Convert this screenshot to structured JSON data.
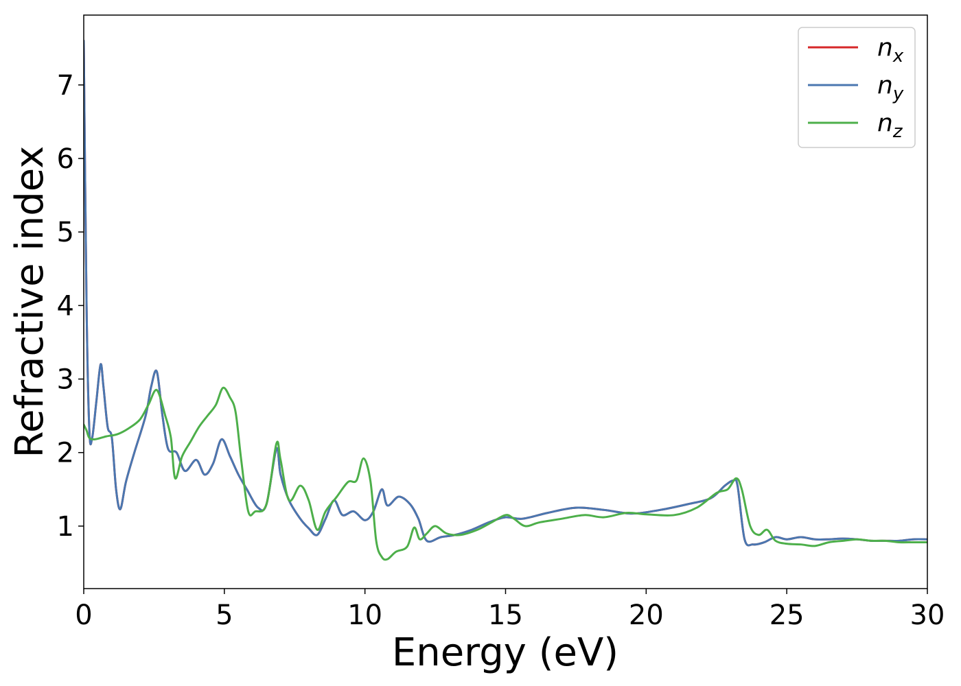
{
  "chart_data": {
    "type": "line",
    "title": "",
    "xlabel": "Energy (eV)",
    "ylabel": "Refractive index",
    "xlim": [
      0,
      30
    ],
    "ylim": [
      0.15,
      7.95
    ],
    "xticks": [
      0,
      5,
      10,
      15,
      20,
      25,
      30
    ],
    "yticks": [
      1,
      2,
      3,
      4,
      5,
      6,
      7
    ],
    "grid": false,
    "legend_position": "top-right",
    "series": [
      {
        "name": "n",
        "subscript": "x",
        "color": "#d62728",
        "x": [
          0,
          0.1,
          0.2,
          0.3,
          0.45,
          0.6,
          0.7,
          0.85,
          1.0,
          1.15,
          1.3,
          1.5,
          1.8,
          2.2,
          2.4,
          2.6,
          2.8,
          3.0,
          3.3,
          3.6,
          4.0,
          4.3,
          4.6,
          4.9,
          5.2,
          5.5,
          5.8,
          6.2,
          6.5,
          6.85,
          7.0,
          7.3,
          7.7,
          8.0,
          8.3,
          8.6,
          8.9,
          9.2,
          9.6,
          10.0,
          10.3,
          10.6,
          10.8,
          11.2,
          11.6,
          11.9,
          12.2,
          12.7,
          13.2,
          13.8,
          14.4,
          15.0,
          15.6,
          16.5,
          17.5,
          18.5,
          19.5,
          20.5,
          21.5,
          22.3,
          22.8,
          23.1,
          23.25,
          23.5,
          23.8,
          24.2,
          24.6,
          25.0,
          25.5,
          26.0,
          26.5,
          27.0,
          27.5,
          28.0,
          28.5,
          29.0,
          29.5,
          30.0
        ],
        "y": [
          7.6,
          4.0,
          2.3,
          2.2,
          2.7,
          3.2,
          2.9,
          2.35,
          2.2,
          1.5,
          1.23,
          1.6,
          2.0,
          2.5,
          2.9,
          3.1,
          2.5,
          2.05,
          2.0,
          1.75,
          1.9,
          1.7,
          1.85,
          2.18,
          1.95,
          1.7,
          1.5,
          1.25,
          1.3,
          2.05,
          1.7,
          1.35,
          1.1,
          0.97,
          0.88,
          1.1,
          1.35,
          1.15,
          1.2,
          1.08,
          1.2,
          1.5,
          1.28,
          1.4,
          1.3,
          1.1,
          0.8,
          0.85,
          0.88,
          0.95,
          1.05,
          1.12,
          1.1,
          1.18,
          1.25,
          1.22,
          1.17,
          1.22,
          1.3,
          1.38,
          1.55,
          1.62,
          1.55,
          0.82,
          0.75,
          0.78,
          0.85,
          0.82,
          0.85,
          0.82,
          0.82,
          0.83,
          0.82,
          0.8,
          0.8,
          0.8,
          0.82,
          0.82
        ]
      },
      {
        "name": "n",
        "subscript": "y",
        "color": "#4a77b0",
        "x": [
          0,
          0.1,
          0.2,
          0.3,
          0.45,
          0.6,
          0.7,
          0.85,
          1.0,
          1.15,
          1.3,
          1.5,
          1.8,
          2.2,
          2.4,
          2.6,
          2.8,
          3.0,
          3.3,
          3.6,
          4.0,
          4.3,
          4.6,
          4.9,
          5.2,
          5.5,
          5.8,
          6.2,
          6.5,
          6.85,
          7.0,
          7.3,
          7.7,
          8.0,
          8.3,
          8.6,
          8.9,
          9.2,
          9.6,
          10.0,
          10.3,
          10.6,
          10.8,
          11.2,
          11.6,
          11.9,
          12.2,
          12.7,
          13.2,
          13.8,
          14.4,
          15.0,
          15.6,
          16.5,
          17.5,
          18.5,
          19.5,
          20.5,
          21.5,
          22.3,
          22.8,
          23.1,
          23.25,
          23.5,
          23.8,
          24.2,
          24.6,
          25.0,
          25.5,
          26.0,
          26.5,
          27.0,
          27.5,
          28.0,
          28.5,
          29.0,
          29.5,
          30.0
        ],
        "y": [
          7.6,
          4.0,
          2.3,
          2.2,
          2.7,
          3.2,
          2.9,
          2.35,
          2.2,
          1.5,
          1.23,
          1.6,
          2.0,
          2.5,
          2.9,
          3.1,
          2.5,
          2.05,
          2.0,
          1.75,
          1.9,
          1.7,
          1.85,
          2.18,
          1.95,
          1.7,
          1.5,
          1.25,
          1.3,
          2.05,
          1.7,
          1.35,
          1.1,
          0.97,
          0.88,
          1.1,
          1.35,
          1.15,
          1.2,
          1.08,
          1.2,
          1.5,
          1.28,
          1.4,
          1.3,
          1.1,
          0.8,
          0.85,
          0.88,
          0.95,
          1.05,
          1.12,
          1.1,
          1.18,
          1.25,
          1.22,
          1.17,
          1.22,
          1.3,
          1.38,
          1.55,
          1.62,
          1.55,
          0.82,
          0.75,
          0.78,
          0.85,
          0.82,
          0.85,
          0.82,
          0.82,
          0.83,
          0.82,
          0.8,
          0.8,
          0.8,
          0.82,
          0.82
        ]
      },
      {
        "name": "n",
        "subscript": "z",
        "color": "#4daf4a",
        "x": [
          0,
          0.1,
          0.2,
          0.4,
          0.8,
          1.2,
          1.6,
          2.0,
          2.3,
          2.6,
          2.9,
          3.1,
          3.25,
          3.5,
          3.8,
          4.1,
          4.4,
          4.7,
          4.95,
          5.2,
          5.4,
          5.6,
          5.85,
          6.1,
          6.5,
          6.85,
          7.0,
          7.3,
          7.7,
          8.0,
          8.3,
          8.6,
          9.0,
          9.4,
          9.7,
          9.95,
          10.2,
          10.4,
          10.6,
          10.8,
          11.1,
          11.5,
          11.75,
          11.95,
          12.2,
          12.5,
          12.9,
          13.4,
          14.0,
          14.5,
          15.0,
          15.3,
          15.7,
          16.2,
          17.0,
          17.8,
          18.5,
          19.3,
          20.0,
          21.0,
          21.8,
          22.5,
          22.9,
          23.2,
          23.4,
          23.7,
          24.0,
          24.3,
          24.6,
          25.0,
          25.5,
          26.0,
          26.5,
          27.0,
          27.5,
          28.0,
          28.5,
          29.0,
          29.5,
          30.0
        ],
        "y": [
          2.38,
          2.3,
          2.2,
          2.18,
          2.22,
          2.25,
          2.33,
          2.45,
          2.65,
          2.85,
          2.5,
          2.2,
          1.65,
          1.95,
          2.15,
          2.35,
          2.5,
          2.65,
          2.88,
          2.75,
          2.55,
          1.9,
          1.2,
          1.2,
          1.3,
          2.12,
          1.9,
          1.35,
          1.55,
          1.35,
          0.95,
          1.2,
          1.4,
          1.6,
          1.62,
          1.92,
          1.6,
          0.8,
          0.58,
          0.55,
          0.65,
          0.72,
          0.98,
          0.82,
          0.9,
          1.0,
          0.9,
          0.88,
          0.95,
          1.05,
          1.15,
          1.1,
          1.0,
          1.05,
          1.1,
          1.15,
          1.12,
          1.18,
          1.16,
          1.15,
          1.25,
          1.45,
          1.5,
          1.65,
          1.5,
          1.0,
          0.88,
          0.95,
          0.8,
          0.76,
          0.75,
          0.73,
          0.78,
          0.8,
          0.82,
          0.8,
          0.8,
          0.78,
          0.78,
          0.78
        ]
      }
    ]
  }
}
